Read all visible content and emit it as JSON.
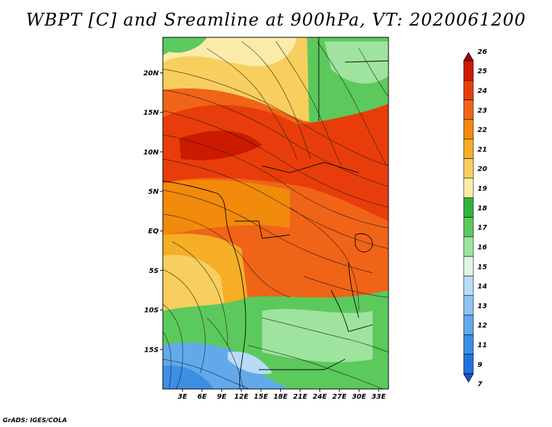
{
  "title": "WBPT [C] and Sreamline at 900hPa, VT: 2020061200",
  "footer": "GrADS: IGES/COLA",
  "map": {
    "latitude_ticks": [
      {
        "label": "20N",
        "lat": 20
      },
      {
        "label": "15N",
        "lat": 15
      },
      {
        "label": "10N",
        "lat": 10
      },
      {
        "label": "5N",
        "lat": 5
      },
      {
        "label": "EQ",
        "lat": 0
      },
      {
        "label": "5S",
        "lat": -5
      },
      {
        "label": "10S",
        "lat": -10
      },
      {
        "label": "15S",
        "lat": -15
      }
    ],
    "longitude_ticks": [
      {
        "label": "3E",
        "lon": 3
      },
      {
        "label": "6E",
        "lon": 6
      },
      {
        "label": "9E",
        "lon": 9
      },
      {
        "label": "12E",
        "lon": 12
      },
      {
        "label": "15E",
        "lon": 15
      },
      {
        "label": "18E",
        "lon": 18
      },
      {
        "label": "21E",
        "lon": 21
      },
      {
        "label": "24E",
        "lon": 24
      },
      {
        "label": "27E",
        "lon": 27
      },
      {
        "label": "30E",
        "lon": 30
      },
      {
        "label": "33E",
        "lon": 33
      }
    ],
    "extent": {
      "lon": [
        0,
        34.5
      ],
      "lat": [
        -20,
        24.5
      ]
    }
  },
  "colorbar": {
    "levels": [
      "26",
      "25",
      "24",
      "23",
      "22",
      "21",
      "20",
      "19",
      "18",
      "17",
      "16",
      "15",
      "14",
      "13",
      "12",
      "11",
      "9",
      "7"
    ],
    "colors": [
      "#a50000",
      "#cc1a00",
      "#e83d0a",
      "#f06418",
      "#f28a0c",
      "#f5ae26",
      "#f8cf5e",
      "#faeca8",
      "#2fb43a",
      "#5cc95c",
      "#9ee39e",
      "#dff5e8",
      "#b7dcf7",
      "#8fc4f2",
      "#62a9ec",
      "#3d8ee5",
      "#2371dd",
      "#1456d2"
    ]
  }
}
